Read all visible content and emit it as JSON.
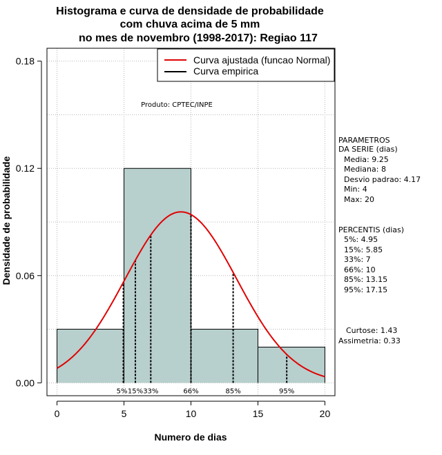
{
  "chart_data": {
    "type": "bar",
    "title_lines": [
      "Histograma e curva de densidade de probabilidade",
      "com chuva acima de 5 mm",
      "no mes de novembro (1998-2017): Regiao 117"
    ],
    "xlabel": "Numero de dias",
    "ylabel": "Densidade de probabilidade",
    "xlim": [
      -0.75,
      20.75
    ],
    "ylim": [
      -0.0072,
      0.1872
    ],
    "x_ticks": [
      0,
      5,
      10,
      15,
      20
    ],
    "x_tick_labels": [
      "0",
      "5",
      "10",
      "15",
      "20"
    ],
    "y_ticks": [
      0.0,
      0.06,
      0.12,
      0.18
    ],
    "y_tick_labels": [
      "0.00",
      "0.06",
      "0.12",
      "0.18"
    ],
    "bins": [
      {
        "start": 0,
        "end": 5,
        "density": 0.03
      },
      {
        "start": 5,
        "end": 10,
        "density": 0.12
      },
      {
        "start": 10,
        "end": 15,
        "density": 0.03
      },
      {
        "start": 15,
        "end": 20,
        "density": 0.02
      }
    ],
    "normal_fit": {
      "mean": 9.25,
      "sd": 4.17,
      "x_range": [
        0,
        20
      ]
    },
    "percentile_markers": [
      {
        "value": 4.95,
        "label": "5%"
      },
      {
        "value": 5.85,
        "label": "15%"
      },
      {
        "value": 7,
        "label": "33%"
      },
      {
        "value": 10,
        "label": "66%"
      },
      {
        "value": 13.15,
        "label": "85%"
      },
      {
        "value": 17.15,
        "label": "95%"
      }
    ],
    "legend": [
      {
        "label": "Curva ajustada (funcao Normal)",
        "color": "#e00000"
      },
      {
        "label": "Curva empirica",
        "color": "#000000"
      }
    ],
    "legend_position": "top-right",
    "product_note": "Produto: CPTEC/INPE",
    "colors": {
      "bar_fill": "#b7cfcd",
      "curve": "#e00000",
      "grid": "#b4b4b4"
    },
    "gridlines": true
  },
  "side_panel": {
    "parametros": [
      "PARAMETROS",
      "DA SERIE (dias)",
      "Media: 9.25",
      "Mediana: 8",
      "Desvio padrao: 4.17",
      "Min: 4",
      "Max: 20"
    ],
    "percentis": [
      "PERCENTIS (dias)",
      "5%: 4.95",
      "15%: 5.85",
      "33%: 7",
      "66%: 10",
      "85%: 13.15",
      "95%: 17.15"
    ],
    "shape": [
      "Curtose: 1.43",
      "Assimetria: 0.33"
    ]
  }
}
